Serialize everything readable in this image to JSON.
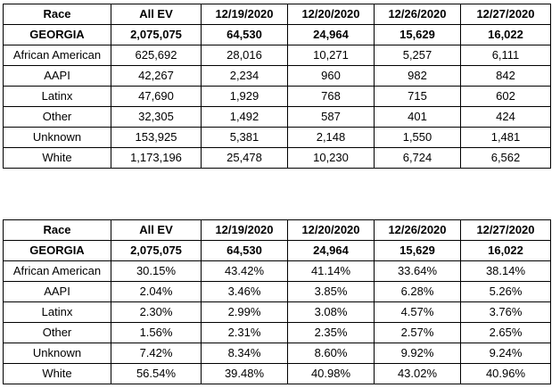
{
  "tables": [
    {
      "header": [
        "Race",
        "All EV",
        "12/19/2020",
        "12/20/2020",
        "12/26/2020",
        "12/27/2020"
      ],
      "rows": [
        [
          "GEORGIA",
          "2,075,075",
          "64,530",
          "24,964",
          "15,629",
          "16,022"
        ],
        [
          "African American",
          "625,692",
          "28,016",
          "10,271",
          "5,257",
          "6,111"
        ],
        [
          "AAPI",
          "42,267",
          "2,234",
          "960",
          "982",
          "842"
        ],
        [
          "Latinx",
          "47,690",
          "1,929",
          "768",
          "715",
          "602"
        ],
        [
          "Other",
          "32,305",
          "1,492",
          "587",
          "401",
          "424"
        ],
        [
          "Unknown",
          "153,925",
          "5,381",
          "2,148",
          "1,550",
          "1,481"
        ],
        [
          "White",
          "1,173,196",
          "25,478",
          "10,230",
          "6,724",
          "6,562"
        ]
      ]
    },
    {
      "header": [
        "Race",
        "All EV",
        "12/19/2020",
        "12/20/2020",
        "12/26/2020",
        "12/27/2020"
      ],
      "rows": [
        [
          "GEORGIA",
          "2,075,075",
          "64,530",
          "24,964",
          "15,629",
          "16,022"
        ],
        [
          "African American",
          "30.15%",
          "43.42%",
          "41.14%",
          "33.64%",
          "38.14%"
        ],
        [
          "AAPI",
          "2.04%",
          "3.46%",
          "3.85%",
          "6.28%",
          "5.26%"
        ],
        [
          "Latinx",
          "2.30%",
          "2.99%",
          "3.08%",
          "4.57%",
          "3.76%"
        ],
        [
          "Other",
          "1.56%",
          "2.31%",
          "2.35%",
          "2.57%",
          "2.65%"
        ],
        [
          "Unknown",
          "7.42%",
          "8.34%",
          "8.60%",
          "9.92%",
          "9.24%"
        ],
        [
          "White",
          "56.54%",
          "39.48%",
          "40.98%",
          "43.02%",
          "40.96%"
        ]
      ]
    }
  ]
}
